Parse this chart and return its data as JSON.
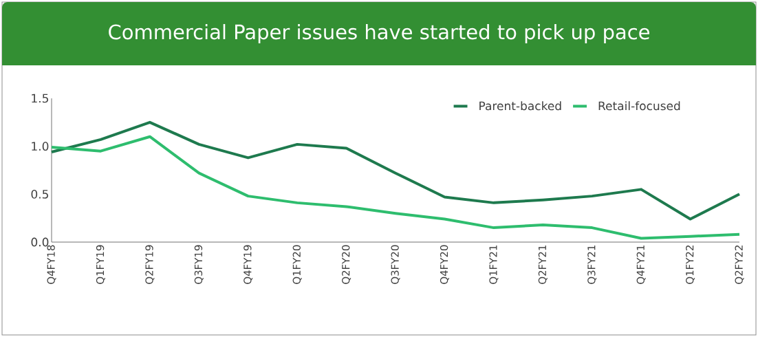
{
  "chart_data": {
    "type": "line",
    "title": "Commercial Paper issues have started to pick up pace",
    "categories": [
      "Q4FY18",
      "Q1FY19",
      "Q2FY19",
      "Q3FY19",
      "Q4FY19",
      "Q1FY20",
      "Q2FY20",
      "Q3FY20",
      "Q4FY20",
      "Q1FY21",
      "Q2FY21",
      "Q3FY21",
      "Q4FY21",
      "Q1FY22",
      "Q2FY22"
    ],
    "series": [
      {
        "name": "Parent-backed",
        "color": "#1e7a4e",
        "values": [
          0.94,
          1.07,
          1.25,
          1.02,
          0.88,
          1.02,
          0.98,
          0.72,
          0.47,
          0.41,
          0.44,
          0.48,
          0.55,
          0.24,
          0.5
        ]
      },
      {
        "name": "Retail-focused",
        "color": "#2ebd6e",
        "values": [
          0.99,
          0.95,
          1.1,
          0.72,
          0.48,
          0.41,
          0.37,
          0.3,
          0.24,
          0.15,
          0.18,
          0.15,
          0.04,
          0.06,
          0.08
        ]
      }
    ],
    "ylim": [
      0,
      1.5
    ],
    "yticks": [
      {
        "value": 0,
        "label": "0.0"
      },
      0.5,
      {
        "value": 1,
        "label": "1.0"
      },
      1.5
    ],
    "legend": "top right",
    "grid": false,
    "marker": "none",
    "line_style": "solid"
  }
}
